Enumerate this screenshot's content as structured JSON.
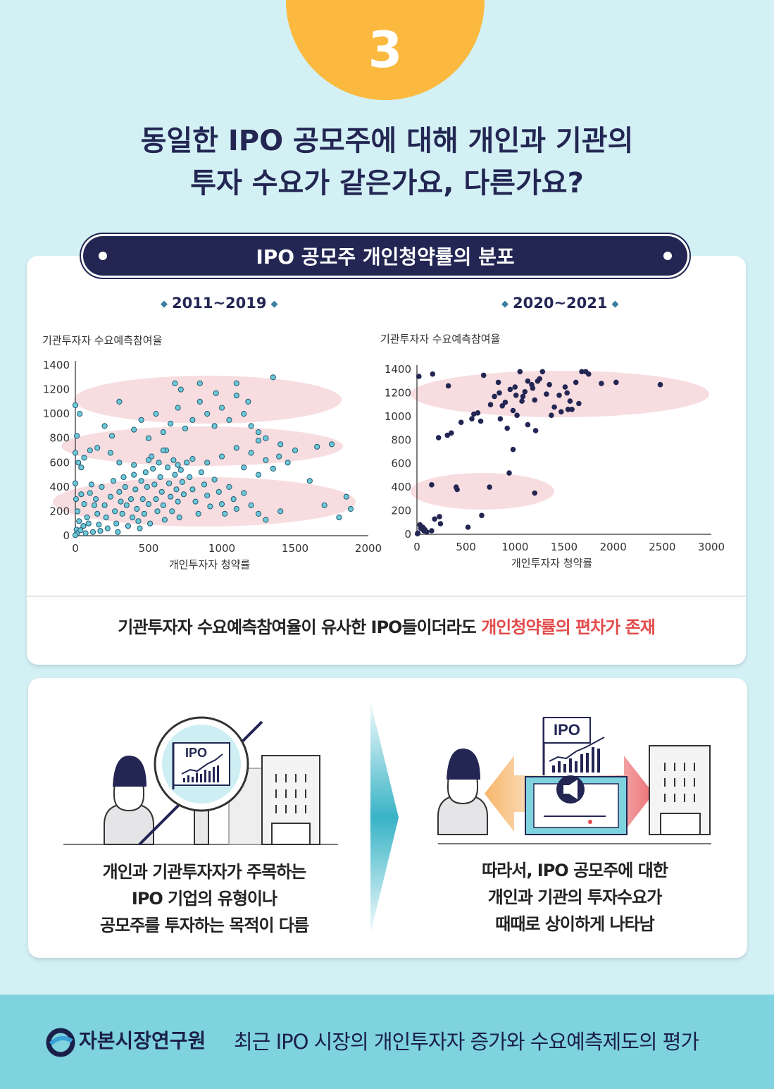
{
  "badge_number": "3",
  "headline": {
    "line1": "동일한 IPO 공모주에 대해 개인과 기관의",
    "line2": "투자 수요가 같은가요, 다른가요?"
  },
  "banner_title": "IPO 공모주 개인청약률의 분포",
  "caption": {
    "text": "기관투자자 수요예측참여율이 유사한 IPO들이더라도 ",
    "highlight": "개인청약률의 편차가 존재"
  },
  "notes": {
    "left": [
      "개인과 기관투자자가 주목하는",
      "IPO 기업의 유형이나",
      "공모주를 투자하는 목적이 다름"
    ],
    "right": [
      "따라서, IPO 공모주에 대한",
      "개인과 기관의 투자수요가",
      "때때로 상이하게 나타남"
    ]
  },
  "illustration_sign": "IPO",
  "footer": {
    "org": "자본시장연구원",
    "title": "최근 IPO 시장의 개인투자자 증가와 수요예측제도의 평가"
  },
  "colors": {
    "navy": "#232653",
    "badge": "#fbb93f",
    "highlight": "#e34a4a",
    "point_light": "#6cc8d8",
    "band": "#f8dde0",
    "footer": "#7fd3de"
  },
  "chart_data": [
    {
      "type": "scatter",
      "title": "2011~2019",
      "xlabel": "개인투자자 청약률",
      "ylabel": "기관투자자 수요예측참여율",
      "xlim": [
        0,
        2000
      ],
      "ylim": [
        0,
        1400
      ],
      "xticks": [
        0,
        500,
        1000,
        1500,
        2000
      ],
      "yticks": [
        0,
        200,
        400,
        600,
        800,
        1000,
        1200,
        1400
      ],
      "points": [
        [
          0,
          1070
        ],
        [
          0,
          680
        ],
        [
          0,
          430
        ],
        [
          30,
          1000
        ],
        [
          10,
          820
        ],
        [
          20,
          600
        ],
        [
          40,
          560
        ],
        [
          5,
          300
        ],
        [
          15,
          200
        ],
        [
          25,
          120
        ],
        [
          8,
          50
        ],
        [
          12,
          20
        ],
        [
          0,
          5
        ],
        [
          40,
          340
        ],
        [
          60,
          260
        ],
        [
          80,
          150
        ],
        [
          55,
          80
        ],
        [
          35,
          45
        ],
        [
          70,
          20
        ],
        [
          90,
          100
        ],
        [
          100,
          350
        ],
        [
          110,
          420
        ],
        [
          130,
          250
        ],
        [
          150,
          180
        ],
        [
          160,
          90
        ],
        [
          170,
          40
        ],
        [
          120,
          30
        ],
        [
          140,
          300
        ],
        [
          180,
          400
        ],
        [
          200,
          250
        ],
        [
          210,
          150
        ],
        [
          220,
          60
        ],
        [
          240,
          320
        ],
        [
          260,
          450
        ],
        [
          270,
          200
        ],
        [
          280,
          100
        ],
        [
          290,
          30
        ],
        [
          300,
          360
        ],
        [
          310,
          280
        ],
        [
          320,
          180
        ],
        [
          330,
          480
        ],
        [
          340,
          400
        ],
        [
          350,
          250
        ],
        [
          360,
          80
        ],
        [
          380,
          300
        ],
        [
          390,
          150
        ],
        [
          400,
          500
        ],
        [
          410,
          380
        ],
        [
          420,
          220
        ],
        [
          430,
          120
        ],
        [
          440,
          60
        ],
        [
          450,
          450
        ],
        [
          460,
          300
        ],
        [
          470,
          180
        ],
        [
          480,
          520
        ],
        [
          490,
          400
        ],
        [
          500,
          260
        ],
        [
          510,
          100
        ],
        [
          520,
          650
        ],
        [
          530,
          550
        ],
        [
          540,
          420
        ],
        [
          550,
          300
        ],
        [
          560,
          200
        ],
        [
          570,
          600
        ],
        [
          580,
          480
        ],
        [
          590,
          360
        ],
        [
          600,
          250
        ],
        [
          610,
          130
        ],
        [
          620,
          700
        ],
        [
          630,
          560
        ],
        [
          640,
          430
        ],
        [
          650,
          320
        ],
        [
          660,
          200
        ],
        [
          670,
          620
        ],
        [
          680,
          500
        ],
        [
          690,
          380
        ],
        [
          700,
          280
        ],
        [
          710,
          150
        ],
        [
          720,
          540
        ],
        [
          730,
          440
        ],
        [
          740,
          340
        ],
        [
          760,
          600
        ],
        [
          780,
          480
        ],
        [
          800,
          380
        ],
        [
          820,
          280
        ],
        [
          840,
          180
        ],
        [
          860,
          520
        ],
        [
          880,
          420
        ],
        [
          900,
          330
        ],
        [
          920,
          240
        ],
        [
          950,
          460
        ],
        [
          980,
          360
        ],
        [
          1000,
          260
        ],
        [
          1020,
          180
        ],
        [
          1050,
          400
        ],
        [
          1080,
          300
        ],
        [
          1100,
          220
        ],
        [
          1150,
          350
        ],
        [
          1200,
          250
        ],
        [
          1250,
          180
        ],
        [
          1300,
          130
        ],
        [
          1400,
          200
        ],
        [
          1600,
          450
        ],
        [
          1700,
          250
        ],
        [
          1800,
          150
        ],
        [
          1850,
          320
        ],
        [
          1880,
          220
        ],
        [
          200,
          900
        ],
        [
          300,
          1100
        ],
        [
          250,
          820
        ],
        [
          400,
          870
        ],
        [
          500,
          800
        ],
        [
          450,
          950
        ],
        [
          550,
          1000
        ],
        [
          600,
          850
        ],
        [
          650,
          920
        ],
        [
          700,
          1050
        ],
        [
          750,
          880
        ],
        [
          800,
          950
        ],
        [
          850,
          1100
        ],
        [
          900,
          1000
        ],
        [
          950,
          900
        ],
        [
          1000,
          1050
        ],
        [
          1050,
          950
        ],
        [
          1100,
          1150
        ],
        [
          1150,
          1000
        ],
        [
          1200,
          900
        ],
        [
          1250,
          850
        ],
        [
          1300,
          800
        ],
        [
          1350,
          1300
        ],
        [
          680,
          1250
        ],
        [
          720,
          1200
        ],
        [
          850,
          1250
        ],
        [
          960,
          1170
        ],
        [
          1100,
          1250
        ],
        [
          1180,
          1100
        ],
        [
          1250,
          780
        ],
        [
          1400,
          750
        ],
        [
          1500,
          700
        ],
        [
          1650,
          730
        ],
        [
          1750,
          750
        ],
        [
          1450,
          600
        ],
        [
          1390,
          650
        ],
        [
          1300,
          620
        ],
        [
          1200,
          680
        ],
        [
          1100,
          720
        ],
        [
          1000,
          650
        ],
        [
          900,
          600
        ],
        [
          800,
          630
        ],
        [
          700,
          580
        ],
        [
          600,
          700
        ],
        [
          500,
          620
        ],
        [
          400,
          580
        ],
        [
          300,
          600
        ],
        [
          240,
          680
        ],
        [
          150,
          720
        ],
        [
          100,
          700
        ],
        [
          60,
          640
        ],
        [
          1350,
          550
        ],
        [
          1250,
          500
        ],
        [
          1150,
          560
        ]
      ]
    },
    {
      "type": "scatter",
      "title": "2020~2021",
      "xlabel": "개인투자자 청약률",
      "ylabel": "기관투자자 수요예측참여율",
      "xlim": [
        0,
        3000
      ],
      "ylim": [
        0,
        1400
      ],
      "xticks": [
        0,
        500,
        1000,
        1500,
        2000,
        2500,
        3000
      ],
      "yticks": [
        0,
        200,
        400,
        600,
        800,
        1000,
        1200,
        1400
      ],
      "points": [
        [
          20,
          1340
        ],
        [
          160,
          1360
        ],
        [
          320,
          1260
        ],
        [
          560,
          980
        ],
        [
          680,
          1350
        ],
        [
          790,
          1170
        ],
        [
          830,
          1290
        ],
        [
          840,
          1200
        ],
        [
          900,
          1120
        ],
        [
          870,
          1090
        ],
        [
          950,
          1230
        ],
        [
          980,
          1050
        ],
        [
          1000,
          1250
        ],
        [
          1010,
          1180
        ],
        [
          1050,
          1380
        ],
        [
          1070,
          1130
        ],
        [
          1080,
          1170
        ],
        [
          1100,
          1210
        ],
        [
          1130,
          1300
        ],
        [
          1170,
          1270
        ],
        [
          1180,
          1240
        ],
        [
          1200,
          1140
        ],
        [
          1230,
          1300
        ],
        [
          1250,
          1320
        ],
        [
          1280,
          1380
        ],
        [
          1320,
          1190
        ],
        [
          1350,
          1270
        ],
        [
          1400,
          1080
        ],
        [
          1450,
          1180
        ],
        [
          1510,
          1250
        ],
        [
          1530,
          1200
        ],
        [
          1560,
          1130
        ],
        [
          1620,
          1290
        ],
        [
          1680,
          1380
        ],
        [
          1720,
          1380
        ],
        [
          1750,
          1360
        ],
        [
          1880,
          1280
        ],
        [
          2030,
          1290
        ],
        [
          2480,
          1270
        ],
        [
          220,
          820
        ],
        [
          310,
          840
        ],
        [
          350,
          860
        ],
        [
          450,
          950
        ],
        [
          580,
          1020
        ],
        [
          620,
          1030
        ],
        [
          650,
          960
        ],
        [
          750,
          1100
        ],
        [
          850,
          980
        ],
        [
          920,
          900
        ],
        [
          1020,
          1010
        ],
        [
          1130,
          930
        ],
        [
          1210,
          880
        ],
        [
          980,
          720
        ],
        [
          1370,
          1010
        ],
        [
          1470,
          1040
        ],
        [
          1540,
          1060
        ],
        [
          1650,
          1110
        ],
        [
          1580,
          1060
        ],
        [
          150,
          420
        ],
        [
          400,
          400
        ],
        [
          410,
          380
        ],
        [
          740,
          400
        ],
        [
          940,
          520
        ],
        [
          1200,
          350
        ],
        [
          80,
          40
        ],
        [
          180,
          130
        ],
        [
          230,
          150
        ],
        [
          240,
          90
        ],
        [
          150,
          30
        ],
        [
          40,
          50
        ],
        [
          60,
          60
        ],
        [
          70,
          30
        ],
        [
          100,
          20
        ],
        [
          10,
          10
        ],
        [
          5,
          5
        ],
        [
          30,
          80
        ],
        [
          520,
          60
        ],
        [
          660,
          160
        ]
      ]
    }
  ]
}
